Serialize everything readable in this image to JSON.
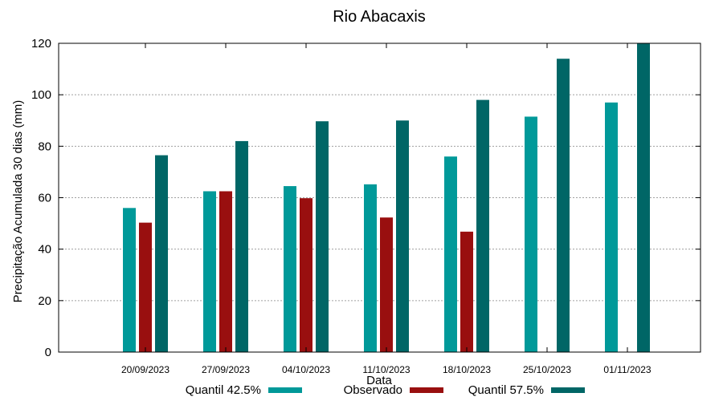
{
  "chart_data": {
    "type": "bar",
    "title": "Rio Abacaxis",
    "xlabel": "Data",
    "ylabel": "Precipitação Acumulada 30 dias (mm)",
    "ylim": [
      0,
      120
    ],
    "yticks": [
      0,
      20,
      40,
      60,
      80,
      100,
      120
    ],
    "grid": true,
    "legend_position": "bottom",
    "categories": [
      "20/09/2023",
      "27/09/2023",
      "04/10/2023",
      "11/10/2023",
      "18/10/2023",
      "25/10/2023",
      "01/11/2023"
    ],
    "series": [
      {
        "name": "Quantil 42.5%",
        "color": "#009999",
        "values": [
          56,
          62.5,
          64.5,
          65.2,
          76,
          91.5,
          97
        ]
      },
      {
        "name": "Observado",
        "color": "#990f0f",
        "values": [
          50.3,
          62.5,
          59.8,
          52.3,
          46.8,
          null,
          null
        ]
      },
      {
        "name": "Quantil 57.5%",
        "color": "#006666",
        "values": [
          76.5,
          82,
          89.7,
          90,
          98,
          114,
          120
        ]
      }
    ]
  }
}
